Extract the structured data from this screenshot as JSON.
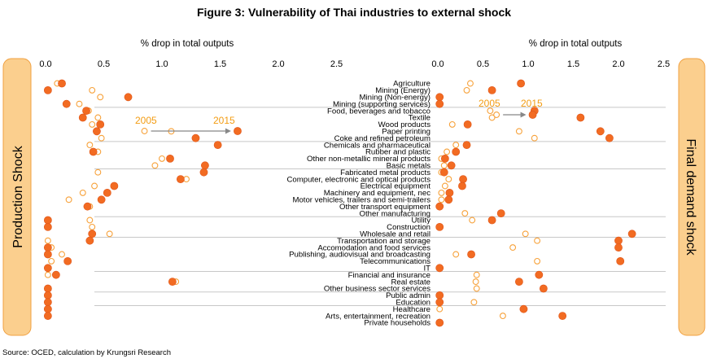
{
  "title": "Figure 3: Vulnerability of Thai industries to external shock",
  "source": "Source: OCED, calculation by Krungsri Research",
  "colors": {
    "series2015": "#f26b22",
    "series2005": "#f7a23b",
    "panel_fill": "#fbcf8e",
    "panel_border": "#f0a040",
    "grid": "#c8c8c8"
  },
  "chart_data": [
    {
      "type": "scatter",
      "panel_label": "Production Shock",
      "xlabel": "% drop in  total outputs",
      "xlim": [
        0,
        2.5
      ],
      "xticks": [
        "0.0",
        "0.5",
        "1.0",
        "1.5",
        "2.0",
        "2.5"
      ],
      "annotation": {
        "from_label": "2005",
        "to_label": "2015",
        "from_x": 0.85,
        "to_x": 1.65
      },
      "series": [
        {
          "name": "2005",
          "style": "hollow",
          "values": [
            0.1,
            0.4,
            0.47,
            0.29,
            0.37,
            0.45,
            0.4,
            1.08,
            0.48,
            0.38,
            0.45,
            1.0,
            0.94,
            0.45,
            1.21,
            0.42,
            0.32,
            0.2,
            0.38,
            0.38,
            0.4,
            0.55,
            0.02,
            0.05,
            0.14,
            0.05,
            0.02,
            0.02,
            1.12,
            0.02,
            0.02,
            0.02,
            0.02,
            0.02
          ]
        },
        {
          "name": "2015",
          "style": "filled",
          "values": [
            0.14,
            0.02,
            0.71,
            0.18,
            0.35,
            0.32,
            0.47,
            0.44,
            1.29,
            1.48,
            0.41,
            1.07,
            1.37,
            1.36,
            1.16,
            0.59,
            0.53,
            0.48,
            0.36,
            0.02,
            0.02,
            0.4,
            0.38,
            0.02,
            0.02,
            0.19,
            0.02,
            0.09,
            1.09,
            0.02,
            0.02,
            0.02,
            0.02,
            0.02
          ]
        }
      ]
    },
    {
      "type": "scatter",
      "panel_label": "Final demand shock",
      "xlabel": "% drop in  total outputs",
      "xlim": [
        0,
        2.5
      ],
      "xticks": [
        "0.0",
        "0.5",
        "1.0",
        "1.5",
        "2.0",
        "2.5"
      ],
      "annotation": {
        "from_label": "2005",
        "to_label": "2015",
        "from_x": 0.65,
        "to_x": 1.05
      },
      "categories": [
        "Agriculture",
        "Mining (Energy)",
        "Mining (Non-energy)",
        "Mining (supporting services)",
        "Food, beverages and tobacco",
        "Textile",
        "Wood products",
        "Paper printing",
        "Coke and refined petroleum",
        "Chemicals and pharmaceutical",
        "Rubber and plastic",
        "Other non-metallic mineral products",
        "Basic metals",
        "Fabricated metal products",
        "Computer, electronic and optical products",
        "Electrical equipment",
        "Machinery and equipment, nec",
        "Motor vehicles, trailers and semi-trailers",
        "Other transport equipment",
        "Other manufacturing",
        "Utility",
        "Construction",
        "Wholesale and retail",
        "Transportation and storage",
        "Accomodation and food services",
        "Publishing, audiovisual and broadcasting",
        "Telecommunications",
        "IT",
        "Financial and insurance",
        "Real estate",
        "Other business sector services",
        "Public admin",
        "Education",
        "Healthcare",
        "Arts, entertainment, recreation",
        "Private households"
      ],
      "series": [
        {
          "name": "2005",
          "style": "hollow",
          "values": [
            0.36,
            0.32,
            0.02,
            0.02,
            0.58,
            0.6,
            0.16,
            0.9,
            1.07,
            0.2,
            0.1,
            0.04,
            0.07,
            0.04,
            0.12,
            0.08,
            0.04,
            0.04,
            0.02,
            0.3,
            0.38,
            0.02,
            0.97,
            1.1,
            0.83,
            0.2,
            1.1,
            0.02,
            0.43,
            0.42,
            0.43,
            0.02,
            0.4,
            0.02,
            0.72,
            0.02
          ]
        },
        {
          "name": "2015",
          "style": "filled",
          "values": [
            0.92,
            0.6,
            0.02,
            0.02,
            1.07,
            1.58,
            0.33,
            1.8,
            1.9,
            0.32,
            0.2,
            0.08,
            0.15,
            0.07,
            0.28,
            0.27,
            0.13,
            0.12,
            0.02,
            0.7,
            0.6,
            0.02,
            2.15,
            2.0,
            2.0,
            0.37,
            2.02,
            0.02,
            1.12,
            0.9,
            1.17,
            0.02,
            0.02,
            0.95,
            1.38,
            0.02
          ]
        }
      ]
    }
  ]
}
